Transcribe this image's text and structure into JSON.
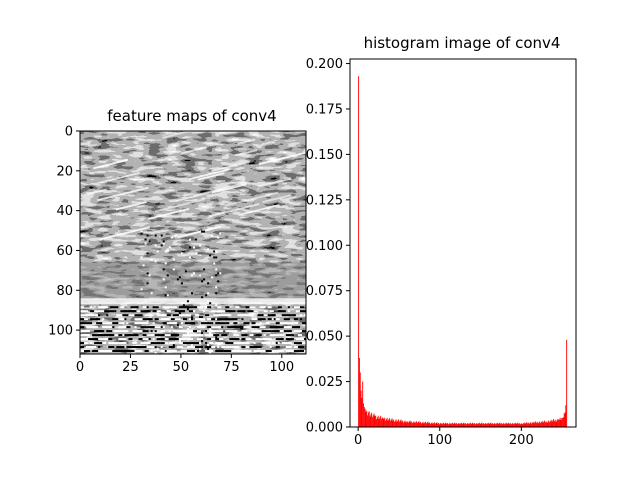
{
  "chart_data": [
    {
      "type": "heatmap",
      "title": "feature maps of conv4",
      "colormap": "gray",
      "shape": [
        112,
        112
      ],
      "xlim": [
        0,
        112
      ],
      "ylim": [
        112,
        0
      ],
      "xticks": [
        0,
        25,
        50,
        75,
        100
      ],
      "yticks": [
        0,
        20,
        40,
        60,
        80,
        100
      ],
      "description_rows": {
        "0-55": "diagonal streaks of grey/white on dark background",
        "55-85": "band of medium grey with white speckles in middle",
        "85-112": "noisy alternating black/white horizontal lines"
      }
    },
    {
      "type": "bar",
      "title": "histogram image of conv4",
      "color": "#ff0000",
      "xlim": [
        -10,
        267
      ],
      "ylim": [
        0,
        0.2025
      ],
      "xticks": [
        0,
        100,
        200
      ],
      "yticks": [
        "0.000",
        "0.025",
        "0.050",
        "0.075",
        "0.100",
        "0.125",
        "0.150",
        "0.175",
        "0.200"
      ],
      "bins": [
        {
          "x": 0,
          "value": 0.193
        },
        {
          "x": 1,
          "value": 0.038
        },
        {
          "x": 2,
          "value": 0.03
        },
        {
          "x": 3,
          "value": 0.02
        },
        {
          "x": 4,
          "value": 0.016
        },
        {
          "x": 5,
          "value": 0.025
        },
        {
          "x": 6,
          "value": 0.013
        },
        {
          "x": 7,
          "value": 0.011
        },
        {
          "x": 8,
          "value": 0.01
        },
        {
          "x": 10,
          "value": 0.009
        },
        {
          "x": 12,
          "value": 0.008
        },
        {
          "x": 15,
          "value": 0.007
        },
        {
          "x": 20,
          "value": 0.006
        },
        {
          "x": 30,
          "value": 0.005
        },
        {
          "x": 40,
          "value": 0.004
        },
        {
          "x": 60,
          "value": 0.003
        },
        {
          "x": 100,
          "value": 0.002
        },
        {
          "x": 150,
          "value": 0.002
        },
        {
          "x": 200,
          "value": 0.002
        },
        {
          "x": 230,
          "value": 0.003
        },
        {
          "x": 245,
          "value": 0.004
        },
        {
          "x": 250,
          "value": 0.005
        },
        {
          "x": 253,
          "value": 0.008
        },
        {
          "x": 254,
          "value": 0.012
        },
        {
          "x": 255,
          "value": 0.048
        }
      ]
    }
  ]
}
